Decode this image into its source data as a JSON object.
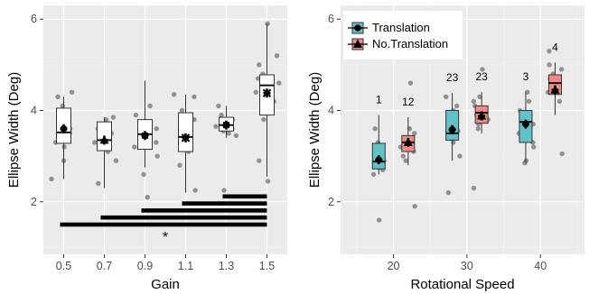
{
  "chart_data": [
    {
      "type": "box",
      "xlabel": "Gain",
      "ylabel": "Ellipse Width (Deg)",
      "categories": [
        "0.5",
        "0.7",
        "0.9",
        "1.1",
        "1.3",
        "1.5"
      ],
      "ylim": [
        0.85,
        6.3
      ],
      "yticks": [
        "2",
        "4",
        "6"
      ],
      "grid": true,
      "boxes": [
        {
          "q1": 3.28,
          "median": 3.52,
          "q3": 4.05,
          "whisker_low": 2.5,
          "whisker_high": 4.3,
          "mean": 3.6
        },
        {
          "q1": 3.12,
          "median": 3.35,
          "q3": 3.75,
          "whisker_low": 2.3,
          "whisker_high": 3.85,
          "mean": 3.35
        },
        {
          "q1": 3.15,
          "median": 3.48,
          "q3": 3.8,
          "whisker_low": 2.75,
          "whisker_high": 4.65,
          "mean": 3.45
        },
        {
          "q1": 3.1,
          "median": 3.42,
          "q3": 3.95,
          "whisker_low": 2.2,
          "whisker_high": 4.35,
          "mean": 3.4
        },
        {
          "q1": 3.55,
          "median": 3.68,
          "q3": 3.85,
          "whisker_low": 3.4,
          "whisker_high": 4.1,
          "mean": 3.68
        },
        {
          "q1": 3.9,
          "median": 4.55,
          "q3": 4.78,
          "whisker_low": 2.55,
          "whisker_high": 5.9,
          "mean": 4.38
        }
      ],
      "points": [
        [
          3.3,
          3.5,
          3.8,
          4.1,
          4.3,
          4.4,
          3.6,
          2.9,
          3.2,
          3.7,
          2.5
        ],
        [
          3.2,
          3.4,
          3.7,
          3.8,
          3.3,
          3.1,
          2.9,
          3.6,
          2.4,
          3.5,
          3.85
        ],
        [
          3.3,
          3.6,
          3.9,
          4.1,
          3.2,
          3.0,
          3.4,
          3.5,
          2.1,
          2.6,
          3.75
        ],
        [
          3.1,
          3.5,
          3.8,
          4.0,
          4.3,
          3.3,
          2.8,
          3.6,
          4.35,
          3.2,
          2.25
        ],
        [
          3.6,
          3.7,
          3.8,
          3.5,
          3.9,
          4.1,
          3.65,
          3.55,
          3.45,
          2.25
        ],
        [
          4.6,
          4.8,
          5.0,
          5.9,
          4.4,
          4.0,
          3.8,
          4.7,
          4.2,
          2.9,
          2.45,
          5.2
        ]
      ],
      "significance_bars": [
        {
          "from": "0.5",
          "to": "1.5"
        },
        {
          "from": "0.7",
          "to": "1.5"
        },
        {
          "from": "0.9",
          "to": "1.5"
        },
        {
          "from": "1.1",
          "to": "1.5"
        },
        {
          "from": "1.3",
          "to": "1.5"
        }
      ],
      "significance_label": "*"
    },
    {
      "type": "box",
      "xlabel": "Rotational Speed",
      "ylabel": "Ellipse Width (Deg)",
      "xlim": [
        12.8,
        46.0
      ],
      "xticks": [
        "20",
        "30",
        "40"
      ],
      "ylim": [
        0.85,
        6.3
      ],
      "yticks": [
        "2",
        "4",
        "6"
      ],
      "grid": true,
      "legend": {
        "position": "top-left",
        "entries": [
          "Translation",
          "No.Translation"
        ]
      },
      "series": [
        {
          "name": "Translation",
          "color": "#5ec4c8",
          "marker": "circle",
          "boxes": [
            {
              "x": 18,
              "q1": 2.72,
              "median": 2.88,
              "q3": 3.28,
              "whisker_low": 2.6,
              "whisker_high": 3.9,
              "mean": 2.92
            },
            {
              "x": 28,
              "q1": 3.35,
              "median": 3.5,
              "q3": 4.0,
              "whisker_low": 2.9,
              "whisker_high": 4.38,
              "mean": 3.58
            },
            {
              "x": 38,
              "q1": 3.3,
              "median": 3.75,
              "q3": 4.0,
              "whisker_low": 2.88,
              "whisker_high": 4.4,
              "mean": 3.7
            }
          ],
          "points": [
            [
              2.6,
              2.8,
              3.0,
              3.3,
              3.6,
              2.9,
              2.7,
              3.1,
              1.6,
              2.75
            ],
            [
              3.3,
              3.5,
              3.8,
              4.0,
              4.3,
              3.6,
              3.0,
              3.4,
              2.2,
              4.1,
              3.55
            ],
            [
              3.3,
              3.7,
              4.0,
              4.2,
              3.5,
              3.2,
              2.9,
              3.9,
              4.4,
              2.85
            ]
          ],
          "annotations": [
            {
              "x": 18,
              "label": "1"
            },
            {
              "x": 28,
              "label": "23"
            },
            {
              "x": 38,
              "label": "3"
            }
          ]
        },
        {
          "name": "No.Translation",
          "color": "#f08a84",
          "marker": "triangle",
          "boxes": [
            {
              "x": 22,
              "q1": 3.1,
              "median": 3.3,
              "q3": 3.45,
              "whisker_low": 2.8,
              "whisker_high": 3.85,
              "mean": 3.3
            },
            {
              "x": 32,
              "q1": 3.72,
              "median": 3.95,
              "q3": 4.1,
              "whisker_low": 3.5,
              "whisker_high": 4.4,
              "mean": 3.88
            },
            {
              "x": 42,
              "q1": 4.35,
              "median": 4.6,
              "q3": 4.78,
              "whisker_low": 3.9,
              "whisker_high": 5.05,
              "mean": 4.45
            }
          ],
          "points": [
            [
              3.1,
              3.3,
              3.4,
              3.6,
              3.2,
              2.9,
              3.5,
              3.0,
              1.9,
              4.6
            ],
            [
              3.7,
              3.9,
              4.1,
              4.3,
              3.8,
              4.0,
              3.6,
              4.2,
              2.3,
              4.9
            ],
            [
              4.4,
              4.6,
              4.8,
              5.0,
              4.2,
              4.7,
              4.5,
              4.9,
              3.05,
              5.3
            ]
          ],
          "annotations": [
            {
              "x": 22,
              "label": "12"
            },
            {
              "x": 32,
              "label": "23"
            },
            {
              "x": 42,
              "label": "4"
            }
          ]
        }
      ]
    }
  ]
}
